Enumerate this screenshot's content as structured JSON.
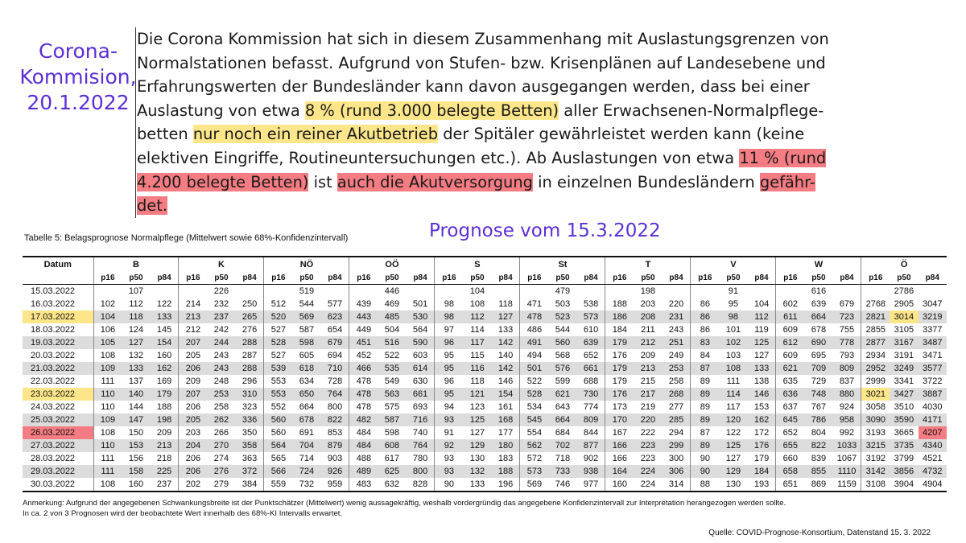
{
  "side_label": [
    "Corona-",
    "Kommision,",
    "20.1.2022"
  ],
  "quote": [
    {
      "t": "Die Corona Kommission hat sich in diesem Zusammenhang mit Auslastungsgrenzen von Normalstationen befasst. Aufgrund von Stufen- bzw. Krisenplänen auf Landesebene und Erfahrungswerten der Bundesländer kann davon ausgegangen werden, dass bei einer Auslastung von etwa ",
      "h": ""
    },
    {
      "t": "8 % (rund 3.000 belegte Betten)",
      "h": "y"
    },
    {
      "t": " aller Erwachsenen-Normalpflege-betten ",
      "h": ""
    },
    {
      "t": "nur noch ein reiner Akutbetrieb",
      "h": "y"
    },
    {
      "t": " der Spitäler gewährleistet werden kann (keine elektiven Eingriffe, Routineuntersuchungen etc.). Ab Auslastungen von etwa ",
      "h": ""
    },
    {
      "t": "11 % (rund 4.200 belegte Betten)",
      "h": "r"
    },
    {
      "t": " ist ",
      "h": ""
    },
    {
      "t": "auch die Akutversorgung",
      "h": "r"
    },
    {
      "t": " in einzelnen Bundesländern ",
      "h": ""
    },
    {
      "t": "gefähr-det.",
      "h": "r"
    }
  ],
  "table_caption": "Tabelle 5: Belagsprognose Normalpflege (Mittelwert sowie 68%-Konfidenzintervall)",
  "prognose_label": "Prognose vom 15.3.2022",
  "table": {
    "date_header": "Datum",
    "regions": [
      "B",
      "K",
      "NÖ",
      "OÖ",
      "S",
      "St",
      "T",
      "V",
      "W",
      "Ö"
    ],
    "subcols": [
      "p16",
      "p50",
      "p84"
    ],
    "rows": [
      {
        "date": "15.03.2022",
        "vals": [
          "",
          "107",
          "",
          "",
          "226",
          "",
          "",
          "519",
          "",
          "",
          "446",
          "",
          "",
          "104",
          "",
          "",
          "479",
          "",
          "",
          "198",
          "",
          "",
          "91",
          "",
          "",
          "616",
          "",
          "",
          "2786",
          ""
        ]
      },
      {
        "date": "16.03.2022",
        "vals": [
          "102",
          "112",
          "122",
          "214",
          "232",
          "250",
          "512",
          "544",
          "577",
          "439",
          "469",
          "501",
          "98",
          "108",
          "118",
          "471",
          "503",
          "538",
          "188",
          "203",
          "220",
          "86",
          "95",
          "104",
          "602",
          "639",
          "679",
          "2768",
          "2905",
          "3047"
        ]
      },
      {
        "date": "17.03.2022",
        "vals": [
          "104",
          "118",
          "133",
          "213",
          "237",
          "265",
          "520",
          "569",
          "623",
          "443",
          "485",
          "530",
          "98",
          "112",
          "127",
          "478",
          "523",
          "573",
          "186",
          "208",
          "231",
          "86",
          "98",
          "112",
          "611",
          "664",
          "723",
          "2821",
          "3014",
          "3219"
        ]
      },
      {
        "date": "18.03.2022",
        "vals": [
          "106",
          "124",
          "145",
          "212",
          "242",
          "276",
          "527",
          "587",
          "654",
          "449",
          "504",
          "564",
          "97",
          "114",
          "133",
          "486",
          "544",
          "610",
          "184",
          "211",
          "243",
          "86",
          "101",
          "119",
          "609",
          "678",
          "755",
          "2855",
          "3105",
          "3377"
        ]
      },
      {
        "date": "19.03.2022",
        "vals": [
          "105",
          "127",
          "154",
          "207",
          "244",
          "288",
          "528",
          "598",
          "679",
          "451",
          "516",
          "590",
          "96",
          "117",
          "142",
          "491",
          "560",
          "639",
          "179",
          "212",
          "251",
          "83",
          "102",
          "125",
          "612",
          "690",
          "778",
          "2877",
          "3167",
          "3487"
        ]
      },
      {
        "date": "20.03.2022",
        "vals": [
          "108",
          "132",
          "160",
          "205",
          "243",
          "287",
          "527",
          "605",
          "694",
          "452",
          "522",
          "603",
          "95",
          "115",
          "140",
          "494",
          "568",
          "652",
          "176",
          "209",
          "249",
          "84",
          "103",
          "127",
          "609",
          "695",
          "793",
          "2934",
          "3191",
          "3471"
        ]
      },
      {
        "date": "21.03.2022",
        "vals": [
          "109",
          "133",
          "162",
          "206",
          "243",
          "288",
          "539",
          "618",
          "710",
          "466",
          "535",
          "614",
          "95",
          "116",
          "142",
          "501",
          "576",
          "661",
          "179",
          "213",
          "253",
          "87",
          "108",
          "133",
          "621",
          "709",
          "809",
          "2952",
          "3249",
          "3577"
        ]
      },
      {
        "date": "22.03.2022",
        "vals": [
          "111",
          "137",
          "169",
          "209",
          "248",
          "296",
          "553",
          "634",
          "728",
          "478",
          "549",
          "630",
          "96",
          "118",
          "146",
          "522",
          "599",
          "688",
          "179",
          "215",
          "258",
          "89",
          "111",
          "138",
          "635",
          "729",
          "837",
          "2999",
          "3341",
          "3722"
        ]
      },
      {
        "date": "23.03.2022",
        "vals": [
          "110",
          "140",
          "179",
          "207",
          "253",
          "310",
          "553",
          "650",
          "764",
          "478",
          "563",
          "661",
          "95",
          "121",
          "154",
          "528",
          "621",
          "730",
          "176",
          "217",
          "268",
          "89",
          "114",
          "146",
          "636",
          "748",
          "880",
          "3021",
          "3427",
          "3887"
        ]
      },
      {
        "date": "24.03.2022",
        "vals": [
          "110",
          "144",
          "188",
          "206",
          "258",
          "323",
          "552",
          "664",
          "800",
          "478",
          "575",
          "693",
          "94",
          "123",
          "161",
          "534",
          "643",
          "774",
          "173",
          "219",
          "277",
          "89",
          "117",
          "153",
          "637",
          "767",
          "924",
          "3058",
          "3510",
          "4030"
        ]
      },
      {
        "date": "25.03.2022",
        "vals": [
          "109",
          "147",
          "198",
          "205",
          "262",
          "336",
          "560",
          "678",
          "822",
          "482",
          "587",
          "716",
          "93",
          "125",
          "168",
          "545",
          "664",
          "809",
          "170",
          "220",
          "285",
          "89",
          "120",
          "162",
          "645",
          "786",
          "958",
          "3090",
          "3590",
          "4171"
        ]
      },
      {
        "date": "26.03.2022",
        "vals": [
          "108",
          "150",
          "209",
          "203",
          "266",
          "350",
          "560",
          "691",
          "853",
          "484",
          "598",
          "740",
          "91",
          "127",
          "177",
          "554",
          "684",
          "844",
          "167",
          "222",
          "294",
          "87",
          "122",
          "172",
          "652",
          "804",
          "992",
          "3193",
          "3665",
          "4207"
        ]
      },
      {
        "date": "27.03.2022",
        "vals": [
          "110",
          "153",
          "213",
          "204",
          "270",
          "358",
          "564",
          "704",
          "879",
          "484",
          "608",
          "764",
          "92",
          "129",
          "180",
          "562",
          "702",
          "877",
          "166",
          "223",
          "299",
          "89",
          "125",
          "176",
          "655",
          "822",
          "1033",
          "3215",
          "3735",
          "4340"
        ]
      },
      {
        "date": "28.03.2022",
        "vals": [
          "111",
          "156",
          "218",
          "206",
          "274",
          "363",
          "565",
          "714",
          "903",
          "488",
          "617",
          "780",
          "93",
          "130",
          "183",
          "572",
          "718",
          "902",
          "166",
          "223",
          "300",
          "90",
          "127",
          "179",
          "660",
          "839",
          "1067",
          "3192",
          "3799",
          "4521"
        ]
      },
      {
        "date": "29.03.2022",
        "vals": [
          "111",
          "158",
          "225",
          "206",
          "276",
          "372",
          "566",
          "724",
          "926",
          "489",
          "625",
          "800",
          "93",
          "132",
          "188",
          "573",
          "733",
          "938",
          "164",
          "224",
          "306",
          "90",
          "129",
          "184",
          "658",
          "855",
          "1110",
          "3142",
          "3856",
          "4732"
        ]
      },
      {
        "date": "30.03.2022",
        "vals": [
          "108",
          "160",
          "237",
          "202",
          "279",
          "384",
          "559",
          "732",
          "959",
          "483",
          "632",
          "828",
          "90",
          "133",
          "196",
          "569",
          "746",
          "977",
          "160",
          "224",
          "314",
          "88",
          "130",
          "193",
          "651",
          "869",
          "1159",
          "3108",
          "3904",
          "4904"
        ]
      }
    ]
  },
  "highlights": {
    "yellow": [
      {
        "row": 2,
        "col": "date"
      },
      {
        "row": 2,
        "col": 28
      },
      {
        "row": 8,
        "col": "date"
      },
      {
        "row": 8,
        "col": 27
      }
    ],
    "red": [
      {
        "row": 11,
        "col": "date"
      },
      {
        "row": 11,
        "col": 29
      }
    ]
  },
  "colors": {
    "accent_purple": "#5b2fd6",
    "highlight_yellow": "#fde68a",
    "highlight_red": "#f47c82"
  },
  "note": [
    "Anmerkung: Aufgrund der angegebenen Schwankungsbreite ist der Punktschätzer (Mittelwert) wenig aussagekräftig, weshalb vordergründig das angegebene Konfidenzintervall zur Interpretation herangezogen werden sollte.",
    "In ca. 2 von 3 Prognosen wird der beobachtete Wert innerhalb des 68%-KI Intervalls erwartet."
  ],
  "source": "Quelle: COVID-Prognose-Konsortium, Datenstand 15. 3. 2022"
}
